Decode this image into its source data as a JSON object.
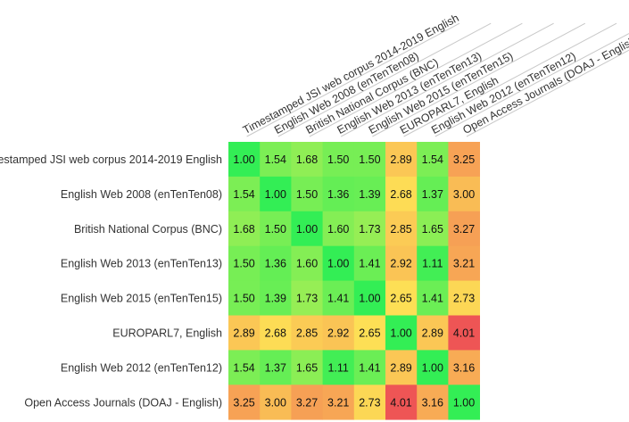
{
  "chart_data": {
    "type": "heatmap",
    "labels": [
      "Timestamped JSI web corpus 2014-2019 English",
      "English Web 2008 (enTenTen08)",
      "British National Corpus (BNC)",
      "English Web 2013 (enTenTen13)",
      "English Web 2015 (enTenTen15)",
      "EUROPARL7, English",
      "English Web 2012 (enTenTen12)",
      "Open Access Journals (DOAJ - English)"
    ],
    "matrix": [
      [
        "1.00",
        "1.54",
        "1.68",
        "1.50",
        "1.50",
        "2.89",
        "1.54",
        "3.25"
      ],
      [
        "1.54",
        "1.00",
        "1.50",
        "1.36",
        "1.39",
        "2.68",
        "1.37",
        "3.00"
      ],
      [
        "1.68",
        "1.50",
        "1.00",
        "1.60",
        "1.73",
        "2.85",
        "1.65",
        "3.27"
      ],
      [
        "1.50",
        "1.36",
        "1.60",
        "1.00",
        "1.41",
        "2.92",
        "1.11",
        "3.21"
      ],
      [
        "1.50",
        "1.39",
        "1.73",
        "1.41",
        "1.00",
        "2.65",
        "1.41",
        "2.73"
      ],
      [
        "2.89",
        "2.68",
        "2.85",
        "2.92",
        "2.65",
        "1.00",
        "2.89",
        "4.01"
      ],
      [
        "1.54",
        "1.37",
        "1.65",
        "1.11",
        "1.41",
        "2.89",
        "1.00",
        "3.16"
      ],
      [
        "3.25",
        "3.00",
        "3.27",
        "3.21",
        "2.73",
        "4.01",
        "3.16",
        "1.00"
      ]
    ],
    "color_scale": {
      "low": "#33ee55",
      "mid": "#ffee55",
      "high": "#ee5555",
      "min": 1.0,
      "max": 4.01
    }
  }
}
